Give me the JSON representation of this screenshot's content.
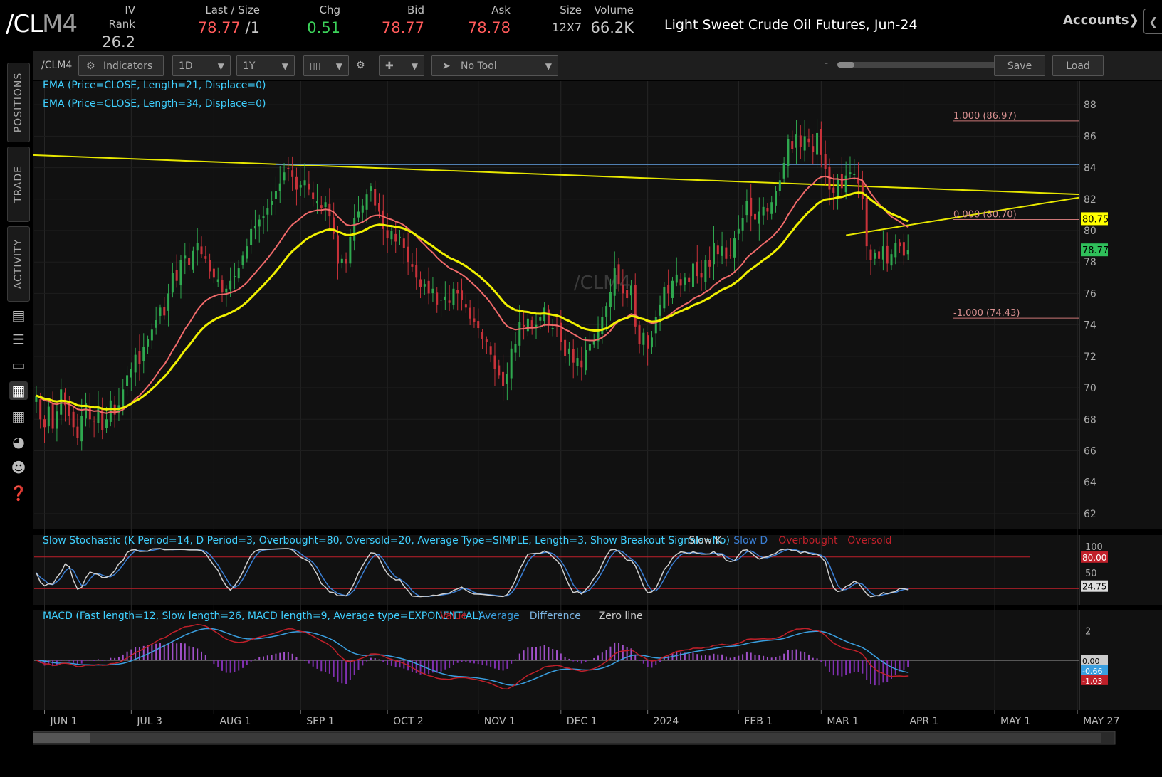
{
  "header": {
    "symbol_main": "/CL",
    "symbol_suffix": "M4",
    "fields": [
      {
        "label": "IV Rank",
        "value": "26.2",
        "color": "#c8c8c8"
      },
      {
        "label": "Last / Size",
        "value": "78.77",
        "value2": "/1",
        "color": "#ff5a5a"
      },
      {
        "label": "Chg",
        "value": "0.51",
        "color": "#3cd35a"
      },
      {
        "label": "Bid",
        "value": "78.77",
        "color": "#ff5a5a"
      },
      {
        "label": "Ask",
        "value": "78.78",
        "color": "#ff5a5a"
      },
      {
        "label": "Size",
        "value": "12X7",
        "color": "#c8c8c8"
      },
      {
        "label": "Volume",
        "value": "66.2K",
        "color": "#c8c8c8"
      }
    ],
    "description": "Light Sweet Crude Oil Futures, Jun-24",
    "accounts_label": "Accounts"
  },
  "sidebar": {
    "tabs": [
      "POSITIONS",
      "TRADE",
      "ACTIVITY"
    ],
    "icons": [
      "chart-bar-icon",
      "list-icon",
      "tv-icon",
      "chart-grid-icon",
      "grid-icon",
      "gauge-icon",
      "people-icon",
      "help-icon"
    ]
  },
  "toolbar": {
    "symbol": "/CLM4",
    "indicators_label": "Indicators",
    "interval": "1D",
    "range": "1Y",
    "drawing_tool": "No Tool",
    "save_label": "Save",
    "load_label": "Load",
    "slider_minus": "-",
    "slider_plus": "+"
  },
  "chart_data": {
    "type": "candlestick",
    "symbol_watermark": "/CLM4",
    "studies_price": [
      "EMA (Price=CLOSE, Length=21, Displace=0)",
      "EMA (Price=CLOSE, Length=34, Displace=0)"
    ],
    "y_ticks": [
      88,
      86,
      84,
      82,
      80,
      78,
      76,
      74,
      72,
      70,
      68,
      66,
      64,
      62
    ],
    "ylim": [
      61,
      89.5
    ],
    "x_labels": [
      "JUN 1",
      "JUL 3",
      "AUG 1",
      "SEP 1",
      "OCT 2",
      "NOV 1",
      "DEC 1",
      "2024",
      "FEB 1",
      "MAR 1",
      "APR 1",
      "MAY 1",
      "MAY 27"
    ],
    "x_label_index": [
      2,
      23,
      43,
      64,
      85,
      107,
      127,
      148,
      170,
      190,
      210,
      232,
      252
    ],
    "closes": [
      69.5,
      68.0,
      67.5,
      68.8,
      67.4,
      68.5,
      69.9,
      68.9,
      68.2,
      67.5,
      66.8,
      68.2,
      69.0,
      68.0,
      67.9,
      68.8,
      67.3,
      68.0,
      69.2,
      68.3,
      68.9,
      69.9,
      70.8,
      71.2,
      72.1,
      71.5,
      72.6,
      73.1,
      73.7,
      74.3,
      75.1,
      74.6,
      76.0,
      77.3,
      76.8,
      78.1,
      78.4,
      77.8,
      78.7,
      79.2,
      78.5,
      78.2,
      77.4,
      77.0,
      76.9,
      76.1,
      76.3,
      76.8,
      77.1,
      77.6,
      78.4,
      79.0,
      80.1,
      80.3,
      80.7,
      80.9,
      81.4,
      81.9,
      82.5,
      83.0,
      83.7,
      83.9,
      83.4,
      82.6,
      82.9,
      83.2,
      82.6,
      82.0,
      81.9,
      81.4,
      81.8,
      80.9,
      79.8,
      77.9,
      78.2,
      77.9,
      79.6,
      80.8,
      81.2,
      81.6,
      82.3,
      82.8,
      81.6,
      81.2,
      80.1,
      79.5,
      80.0,
      79.3,
      79.6,
      78.9,
      78.0,
      77.7,
      77.0,
      76.4,
      76.6,
      76.0,
      76.3,
      75.3,
      75.6,
      75.8,
      75.4,
      76.3,
      76.0,
      75.6,
      75.1,
      74.4,
      74.2,
      73.8,
      73.1,
      72.9,
      72.1,
      71.2,
      70.8,
      70.1,
      70.9,
      72.5,
      72.8,
      74.2,
      73.9,
      74.4,
      73.8,
      74.0,
      74.5,
      75.1,
      74.0,
      73.8,
      73.9,
      72.9,
      72.0,
      72.5,
      71.6,
      71.9,
      71.3,
      72.4,
      72.8,
      73.0,
      73.7,
      74.5,
      75.2,
      76.1,
      77.6,
      76.6,
      76.0,
      75.7,
      76.5,
      73.9,
      72.8,
      73.5,
      72.5,
      73.2,
      74.5,
      75.3,
      76.4,
      76.0,
      76.8,
      77.2,
      76.5,
      77.0,
      76.7,
      77.9,
      77.1,
      77.0,
      78.1,
      77.7,
      79.2,
      78.5,
      79.0,
      78.2,
      78.4,
      79.5,
      80.1,
      80.8,
      81.9,
      80.9,
      80.7,
      81.2,
      81.5,
      81.2,
      81.8,
      82.5,
      83.2,
      84.3,
      85.8,
      85.2,
      86.1,
      85.3,
      86.0,
      85.6,
      85.0,
      86.2,
      84.8,
      83.9,
      82.6,
      82.4,
      83.3,
      82.7,
      83.5,
      83.7,
      83.6,
      83.0,
      82.0,
      79.0,
      78.1,
      78.6,
      78.2,
      79.0,
      77.9,
      78.5,
      79.2,
      79.0,
      78.4,
      78.77
    ],
    "ema21_label": "EMA21",
    "ema34_label": "EMA34",
    "fib": {
      "high_label": "1.000 (86.97)",
      "high": 86.97,
      "mid_label": "0.000 (80.70)",
      "mid": 80.7,
      "low_label": "-1.000 (74.43)",
      "low": 74.43
    },
    "resistance_level": 84.2,
    "price_badges": [
      {
        "label": "80.75",
        "value": 80.75,
        "color": "#ffff00"
      },
      {
        "label": "78.77",
        "value": 78.77,
        "color": "#2fbf5a"
      }
    ],
    "stochastic": {
      "title": "Slow Stochastic (K Period=14, D Period=3, Overbought=80, Oversold=20, Average Type=SIMPLE, Length=3, Show Breakout Signals=No)",
      "legend": [
        {
          "name": "Slow K",
          "color": "#d0d0d0"
        },
        {
          "name": "Slow D",
          "color": "#3a7fd5"
        },
        {
          "name": "Overbought",
          "color": "#c0202a"
        },
        {
          "name": "Oversold",
          "color": "#c0202a"
        }
      ],
      "y_ticks": [
        100,
        50
      ],
      "overbought": 80,
      "oversold": 20,
      "badges": [
        {
          "label": "80.00",
          "value": 80
        },
        {
          "label": "24.75",
          "value": 24.75
        }
      ]
    },
    "macd": {
      "title": "MACD (Fast length=12, Slow length=26, MACD length=9, Average type=EXPONENTIAL)",
      "legend": [
        {
          "name": "Value",
          "color": "#c0202a"
        },
        {
          "name": "Average",
          "color": "#3a9fe0"
        },
        {
          "name": "Difference",
          "color": "#7bb3e0"
        },
        {
          "name": "Zero line",
          "color": "#cccccc"
        }
      ],
      "y_ticks": [
        2
      ],
      "badges": [
        {
          "label": "0.00",
          "color": "#cccccc"
        },
        {
          "label": "-0.66",
          "color": "#3a9fe0"
        },
        {
          "label": "-1.03",
          "color": "#c0202a"
        }
      ]
    }
  }
}
